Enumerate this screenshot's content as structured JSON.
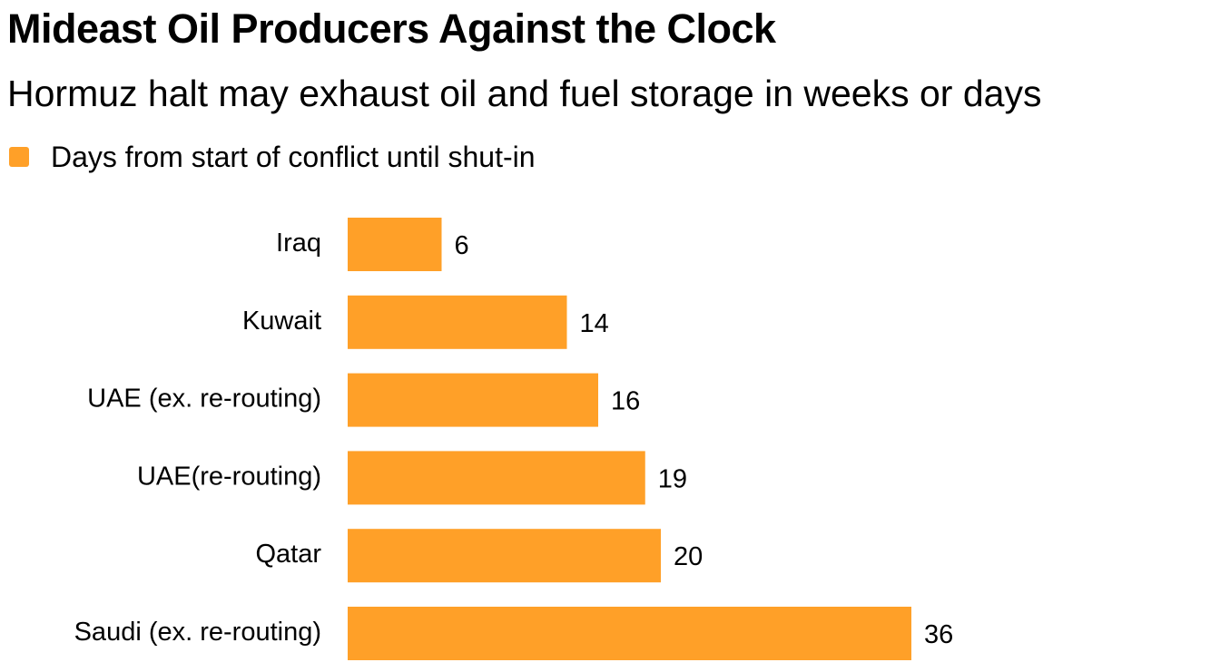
{
  "chart_data": {
    "type": "bar",
    "orientation": "horizontal",
    "title": "Mideast Oil Producers Against the Clock",
    "subtitle": "Hormuz halt may exhaust oil and fuel storage in weeks or days",
    "legend": [
      {
        "label": "Days from start of conflict until shut-in",
        "color": "#FFA028"
      }
    ],
    "categories": [
      "Iraq",
      "Kuwait",
      "UAE (ex. re-routing)",
      "UAE(re-routing)",
      "Qatar",
      "Saudi (ex. re-routing)"
    ],
    "values": [
      6,
      14,
      16,
      19,
      20,
      36
    ],
    "value_labels": [
      "6",
      "14",
      "16",
      "19",
      "20",
      "36"
    ],
    "xlim": [
      0,
      36
    ],
    "grid": false,
    "bar_color": "#FFA028"
  }
}
